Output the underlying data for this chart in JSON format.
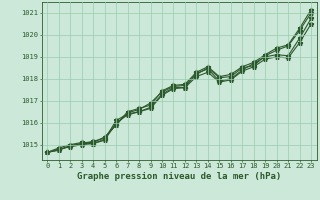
{
  "title": "Graphe pression niveau de la mer (hPa)",
  "background_color": "#cce8d8",
  "plot_bg_color": "#cce8d8",
  "grid_color": "#99ccb0",
  "line_color": "#2d5a2d",
  "marker_color": "#2d5a2d",
  "xlim": [
    -0.5,
    23.5
  ],
  "ylim": [
    1014.3,
    1021.5
  ],
  "yticks": [
    1015,
    1016,
    1017,
    1018,
    1019,
    1020,
    1021
  ],
  "xticks": [
    0,
    1,
    2,
    3,
    4,
    5,
    6,
    7,
    8,
    9,
    10,
    11,
    12,
    13,
    14,
    15,
    16,
    17,
    18,
    19,
    20,
    21,
    22,
    23
  ],
  "series": [
    [
      1014.65,
      1014.75,
      1014.95,
      1015.05,
      1015.05,
      1015.25,
      1016.1,
      1016.4,
      1016.5,
      1016.7,
      1017.3,
      1017.6,
      1017.6,
      1018.25,
      1018.45,
      1017.9,
      1018.0,
      1018.4,
      1018.7,
      1019.0,
      1019.1,
      1019.05,
      1019.85,
      1020.75
    ],
    [
      1014.65,
      1014.75,
      1014.95,
      1015.05,
      1015.15,
      1015.3,
      1015.9,
      1016.45,
      1016.6,
      1016.9,
      1017.4,
      1017.65,
      1017.7,
      1018.2,
      1018.5,
      1018.05,
      1018.1,
      1018.5,
      1018.6,
      1019.05,
      1019.3,
      1019.5,
      1020.2,
      1021.0
    ],
    [
      1014.65,
      1014.85,
      1015.0,
      1015.1,
      1015.1,
      1015.35,
      1015.9,
      1016.5,
      1016.65,
      1016.8,
      1017.45,
      1017.7,
      1017.75,
      1018.3,
      1018.55,
      1018.1,
      1018.2,
      1018.55,
      1018.75,
      1019.1,
      1019.4,
      1019.55,
      1020.3,
      1021.15
    ],
    [
      1014.65,
      1014.8,
      1014.9,
      1015.0,
      1015.05,
      1015.2,
      1016.0,
      1016.35,
      1016.5,
      1016.65,
      1017.25,
      1017.55,
      1017.6,
      1018.1,
      1018.3,
      1017.85,
      1017.95,
      1018.35,
      1018.55,
      1018.9,
      1019.0,
      1018.95,
      1019.65,
      1020.5
    ]
  ],
  "marker": "*",
  "markersize": 3.5,
  "linewidth": 0.8,
  "fontsize_title": 6.5,
  "fontsize_ticks": 5.0
}
